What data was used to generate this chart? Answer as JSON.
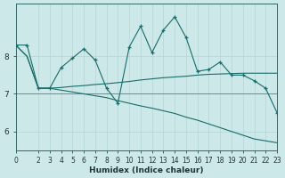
{
  "xlabel": "Humidex (Indice chaleur)",
  "background_color": "#cce8e8",
  "grid_color": "#b8d8d8",
  "line_color": "#1a6b6b",
  "red_line_color": "#cc6666",
  "x_values": [
    0,
    1,
    2,
    3,
    4,
    5,
    6,
    7,
    8,
    9,
    10,
    11,
    12,
    13,
    14,
    15,
    16,
    17,
    18,
    19,
    20,
    21,
    22,
    23
  ],
  "y_main": [
    8.3,
    8.3,
    7.15,
    7.15,
    7.7,
    7.95,
    8.2,
    7.9,
    7.15,
    6.75,
    8.25,
    8.8,
    8.1,
    8.7,
    9.05,
    8.5,
    7.6,
    7.65,
    7.85,
    7.5,
    7.5,
    7.35,
    7.15,
    6.5
  ],
  "y_flat": [
    8.3,
    8.0,
    7.15,
    7.15,
    7.17,
    7.2,
    7.22,
    7.25,
    7.27,
    7.3,
    7.33,
    7.37,
    7.4,
    7.43,
    7.45,
    7.47,
    7.5,
    7.52,
    7.53,
    7.54,
    7.55,
    7.55,
    7.55,
    7.55
  ],
  "y_decline": [
    8.3,
    8.0,
    7.15,
    7.15,
    7.1,
    7.05,
    7.0,
    6.95,
    6.9,
    6.82,
    6.75,
    6.68,
    6.62,
    6.55,
    6.48,
    6.38,
    6.3,
    6.2,
    6.1,
    6.0,
    5.9,
    5.8,
    5.75,
    5.7
  ],
  "red_y": 7.0,
  "ylim": [
    5.5,
    9.4
  ],
  "yticks": [
    6,
    7,
    8
  ],
  "xlim": [
    0,
    23
  ],
  "xticks": [
    0,
    2,
    3,
    4,
    5,
    6,
    7,
    8,
    9,
    10,
    11,
    12,
    13,
    14,
    15,
    16,
    17,
    18,
    19,
    20,
    21,
    22,
    23
  ],
  "xlabel_fontsize": 6.5,
  "tick_fontsize": 5.5,
  "ytick_fontsize": 6.5
}
